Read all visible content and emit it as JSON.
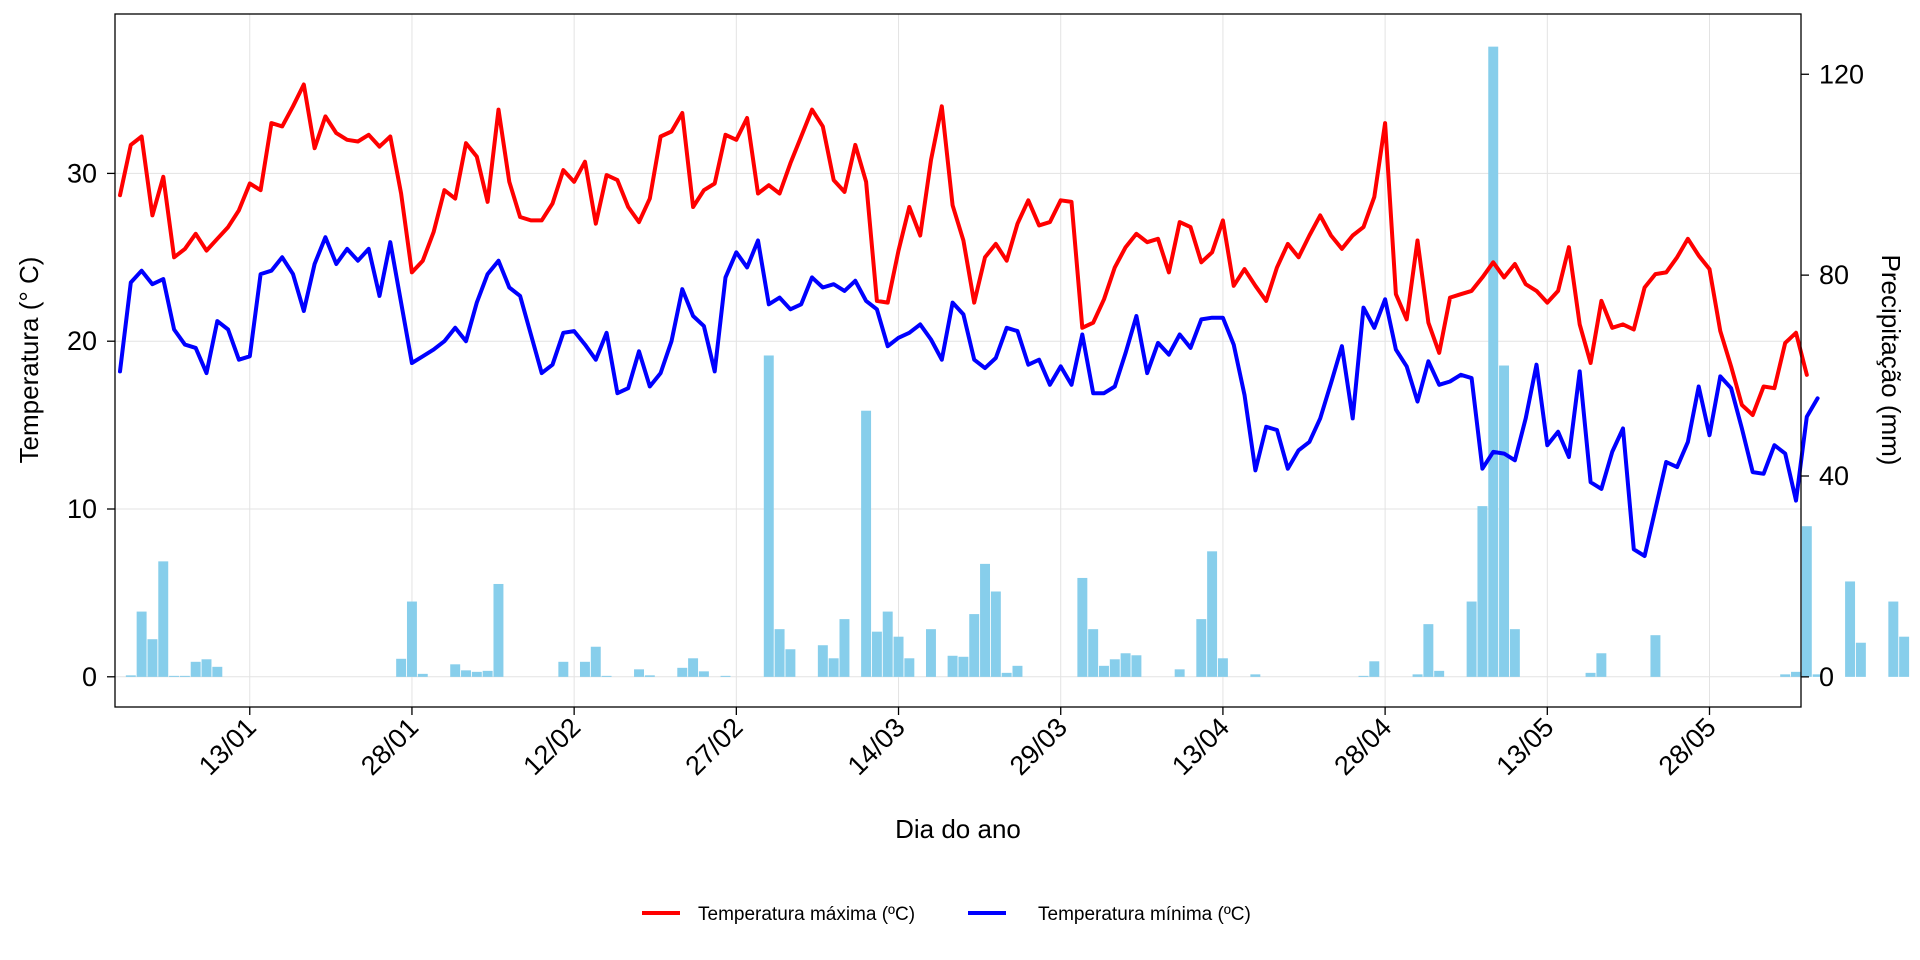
{
  "chart_data": {
    "type": "line",
    "x": {
      "label": "Dia do ano",
      "ticks": [
        "13/01",
        "28/01",
        "12/02",
        "27/02",
        "14/03",
        "29/03",
        "13/04",
        "28/04",
        "13/05",
        "28/05"
      ],
      "start_date": "2021-01-01",
      "end_date": "2021-06-05"
    },
    "y_left": {
      "label": "Temperatura (° C)",
      "ylim": [
        -1.8,
        39.5
      ],
      "ticks": [
        0,
        10,
        20,
        30
      ]
    },
    "y_right": {
      "label": "Precipitação (mm)",
      "ylim": [
        -6,
        132
      ],
      "ticks": [
        0,
        40,
        80,
        120
      ]
    },
    "grid": true,
    "legend_position": "bottom",
    "series": [
      {
        "name": "Temperatura máxima (ºC)",
        "axis": "left",
        "color": "#ff0000",
        "values": [
          28.7,
          31.7,
          32.2,
          27.5,
          29.8,
          25.0,
          25.5,
          26.4,
          25.4,
          26.1,
          26.8,
          27.8,
          29.4,
          29.0,
          33.0,
          32.8,
          34.0,
          35.3,
          31.5,
          33.4,
          32.4,
          32.0,
          31.9,
          32.3,
          31.6,
          32.2,
          28.8,
          24.1,
          24.8,
          26.5,
          29.0,
          28.5,
          31.8,
          31.0,
          28.3,
          33.8,
          29.5,
          27.4,
          27.2,
          27.2,
          28.2,
          30.2,
          29.5,
          30.7,
          27.0,
          29.9,
          29.6,
          28.0,
          27.1,
          28.5,
          32.2,
          32.5,
          33.6,
          28.0,
          29.0,
          29.4,
          32.3,
          32.0,
          33.3,
          28.8,
          29.3,
          28.8,
          30.6,
          32.2,
          33.8,
          32.8,
          29.6,
          28.9,
          31.7,
          29.5,
          22.4,
          22.3,
          25.4,
          28.0,
          26.3,
          30.8,
          34.0,
          28.1,
          26.0,
          22.3,
          25.0,
          25.8,
          24.8,
          27.0,
          28.4,
          26.9,
          27.1,
          28.4,
          28.3,
          20.8,
          21.1,
          22.5,
          24.4,
          25.6,
          26.4,
          25.9,
          26.1,
          24.1,
          27.1,
          26.8,
          24.7,
          25.3,
          27.2,
          23.3,
          24.3,
          23.3,
          22.4,
          24.4,
          25.8,
          25.0,
          26.3,
          27.5,
          26.3,
          25.5,
          26.3,
          26.8,
          28.6,
          33.0,
          22.8,
          21.3,
          26.0,
          21.1,
          19.3,
          22.6,
          22.8,
          23.0,
          23.8,
          24.7,
          23.8,
          24.6,
          23.4,
          23.0,
          22.3,
          23.0,
          25.6,
          21.0,
          18.7,
          22.4,
          20.8,
          21.0,
          20.7,
          23.2,
          24.0,
          24.1,
          25.0,
          26.1,
          25.1,
          24.3,
          20.6,
          18.5,
          16.2,
          15.6,
          17.3,
          17.2,
          19.9,
          20.5,
          18.0
        ]
      },
      {
        "name": "Temperatura mínima (ºC)",
        "axis": "left",
        "color": "#0000ff",
        "values": [
          18.2,
          23.5,
          24.2,
          23.4,
          23.7,
          20.7,
          19.8,
          19.6,
          18.1,
          21.2,
          20.7,
          18.9,
          19.1,
          24.0,
          24.2,
          25.0,
          24.0,
          21.8,
          24.6,
          26.2,
          24.6,
          25.5,
          24.8,
          25.5,
          22.7,
          25.9,
          22.3,
          18.7,
          19.1,
          19.5,
          20.0,
          20.8,
          20.0,
          22.3,
          24.0,
          24.8,
          23.2,
          22.7,
          20.4,
          18.1,
          18.6,
          20.5,
          20.6,
          19.8,
          18.9,
          20.5,
          16.9,
          17.2,
          19.4,
          17.3,
          18.1,
          20.0,
          23.1,
          21.5,
          20.9,
          18.2,
          23.8,
          25.3,
          24.4,
          26.0,
          22.2,
          22.6,
          21.9,
          22.2,
          23.8,
          23.2,
          23.4,
          23.0,
          23.6,
          22.4,
          21.9,
          19.7,
          20.2,
          20.5,
          21.0,
          20.1,
          18.9,
          22.3,
          21.6,
          18.9,
          18.4,
          19.0,
          20.8,
          20.6,
          18.6,
          18.9,
          17.4,
          18.5,
          17.4,
          20.4,
          16.9,
          16.9,
          17.3,
          19.3,
          21.5,
          18.1,
          19.9,
          19.2,
          20.4,
          19.6,
          21.3,
          21.4,
          21.4,
          19.8,
          16.8,
          12.3,
          14.9,
          14.7,
          12.4,
          13.5,
          14.0,
          15.4,
          17.5,
          19.7,
          15.4,
          22.0,
          20.8,
          22.5,
          19.5,
          18.5,
          16.4,
          18.8,
          17.4,
          17.6,
          18.0,
          17.8,
          12.4,
          13.4,
          13.3,
          12.9,
          15.4,
          18.6,
          13.8,
          14.6,
          13.1,
          18.2,
          11.6,
          11.2,
          13.4,
          14.8,
          7.6,
          7.2,
          10.0,
          12.8,
          12.5,
          14.0,
          17.3,
          14.4,
          17.9,
          17.2,
          14.8,
          12.2,
          12.1,
          13.8,
          13.3,
          10.5,
          15.5,
          16.6
        ]
      },
      {
        "name": "Precipitação",
        "axis": "right",
        "type": "bar",
        "color": "#87ceeb",
        "values": [
          0,
          0.3,
          13,
          7.5,
          23,
          0.2,
          0.2,
          3,
          3.5,
          2,
          0,
          0,
          0,
          0,
          0,
          0,
          0,
          0,
          0,
          0,
          0,
          0,
          0,
          0,
          0,
          0,
          3.6,
          15,
          0.6,
          0,
          0,
          2.5,
          1.3,
          1.0,
          1.2,
          18.5,
          0,
          0,
          0,
          0,
          0,
          3,
          0,
          3,
          6,
          0.2,
          0,
          0,
          1.5,
          0.3,
          0,
          0,
          1.8,
          3.7,
          1.1,
          0,
          0.2,
          0,
          0,
          0,
          64,
          9.5,
          5.5,
          0,
          0,
          6.3,
          3.7,
          11.5,
          0,
          53,
          9,
          13,
          8,
          3.7,
          0,
          9.5,
          0,
          4.2,
          4,
          12.5,
          22.5,
          17,
          0.8,
          2.2,
          0,
          0,
          0,
          0,
          0,
          19.7,
          9.5,
          2.2,
          3.5,
          4.7,
          4.3,
          0,
          0,
          0,
          1.5,
          0,
          11.5,
          25,
          3.7,
          0,
          0,
          0.5,
          0,
          0,
          0,
          0,
          0,
          0,
          0,
          0,
          0,
          0.2,
          3.1,
          0,
          0,
          0,
          0.5,
          10.5,
          1.2,
          0,
          0,
          15,
          34,
          125.5,
          62,
          9.5,
          0,
          0,
          0,
          0,
          0,
          0,
          0.8,
          4.7,
          0,
          0,
          0,
          0,
          8.3,
          0,
          0,
          0,
          0,
          0,
          0,
          0,
          0,
          0,
          0,
          0,
          0.5,
          1.0,
          30,
          0.5,
          0,
          0,
          19,
          6.8,
          0,
          0,
          15,
          8
        ]
      }
    ]
  }
}
